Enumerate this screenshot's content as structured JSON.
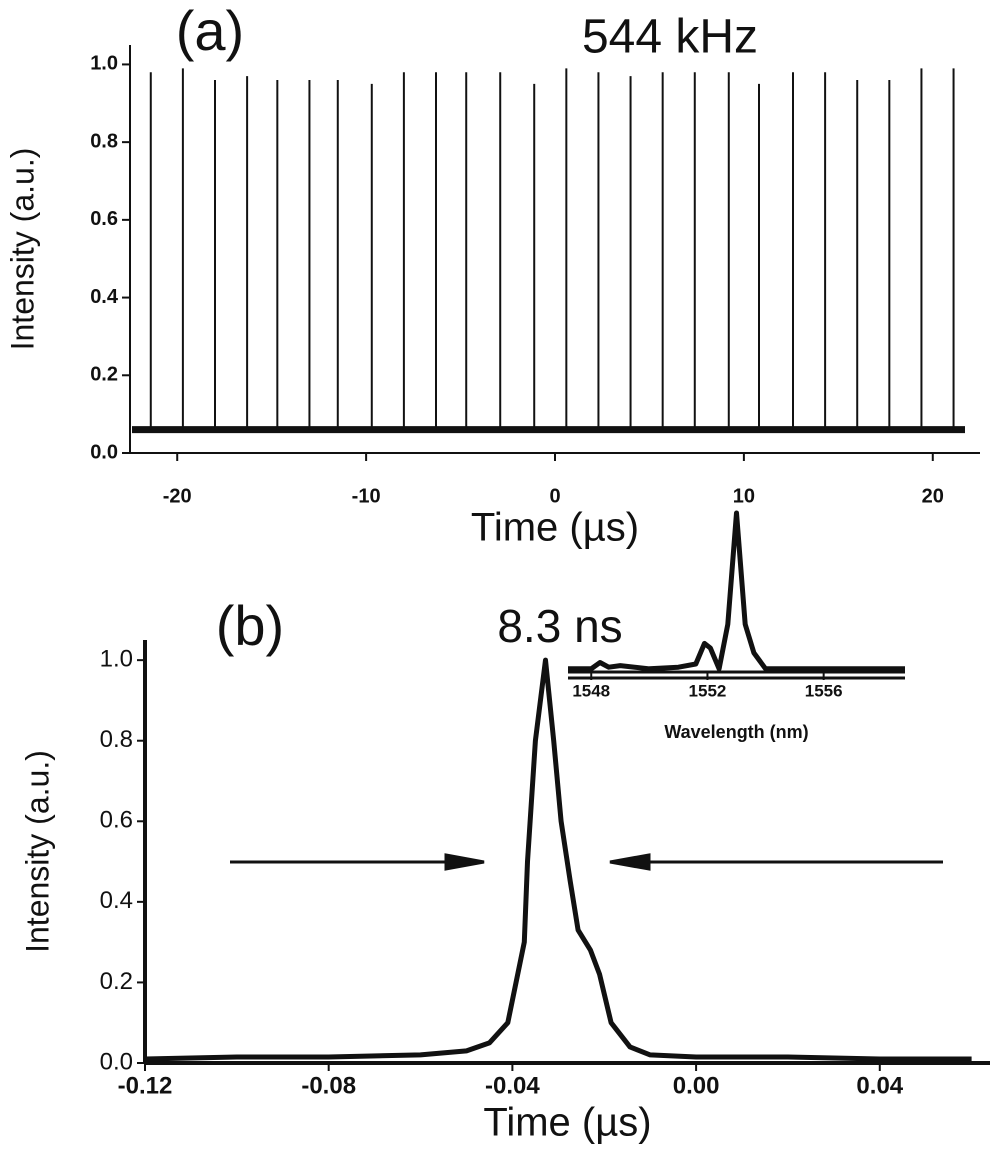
{
  "chart_data": [
    {
      "type": "stem",
      "panel_label": "(a)",
      "annotation": "544 kHz",
      "x_label": "Time (µs)",
      "y_label": "Intensity (a.u.)",
      "x": [
        -21.4,
        -19.7,
        -18.0,
        -16.3,
        -14.7,
        -13.0,
        -11.5,
        -9.7,
        -8.0,
        -6.3,
        -4.7,
        -2.9,
        -1.1,
        0.6,
        2.3,
        4.0,
        5.7,
        7.4,
        9.2,
        10.8,
        12.6,
        14.3,
        16.0,
        17.7,
        19.4,
        21.1
      ],
      "values": [
        0.98,
        0.99,
        0.96,
        0.97,
        0.96,
        0.96,
        0.96,
        0.95,
        0.98,
        0.98,
        0.98,
        0.98,
        0.95,
        0.99,
        0.98,
        0.97,
        0.98,
        0.98,
        0.98,
        0.95,
        0.98,
        0.98,
        0.96,
        0.96,
        0.99,
        0.99
      ],
      "baseline": 0.06,
      "color": "#111111",
      "xlim": [
        -22.5,
        22.5
      ],
      "xticks": [
        -20,
        -10,
        0,
        10,
        20
      ],
      "ylim": [
        0,
        1.05
      ],
      "yticks": [
        {
          "value": 0,
          "label": "0.0"
        },
        0.2,
        0.4,
        0.6,
        0.8,
        {
          "value": 1,
          "label": "1.0"
        }
      ]
    },
    {
      "type": "line",
      "panel_label": "(b)",
      "annotation": "8.3 ns",
      "x_label": "Time (µs)",
      "y_label": "Intensity (a.u.)",
      "x": [
        -0.12,
        -0.1,
        -0.08,
        -0.06,
        -0.05,
        -0.045,
        -0.041,
        -0.0374,
        -0.0367,
        -0.035,
        -0.0328,
        -0.031,
        -0.0294,
        -0.0274,
        -0.0257,
        -0.023,
        -0.021,
        -0.0185,
        -0.0144,
        -0.01,
        0,
        0.02,
        0.04,
        0.06
      ],
      "values": [
        0.01,
        0.015,
        0.015,
        0.02,
        0.03,
        0.05,
        0.1,
        0.3,
        0.5,
        0.8,
        1.0,
        0.8,
        0.6,
        0.45,
        0.33,
        0.28,
        0.22,
        0.1,
        0.04,
        0.02,
        0.015,
        0.015,
        0.01,
        0.01
      ],
      "color": "#111111",
      "xlim": [
        -0.12,
        0.064
      ],
      "xticks": [
        -0.12,
        -0.08,
        -0.04,
        {
          "value": 0,
          "label": "0.00"
        },
        0.04
      ],
      "ylim": [
        0,
        1.05
      ],
      "yticks": [
        {
          "value": 0,
          "label": "0.0"
        },
        0.2,
        0.4,
        0.6,
        0.8,
        {
          "value": 1,
          "label": "1.0"
        }
      ]
    },
    {
      "type": "line",
      "x_label": "Wavelength (nm)",
      "x": [
        1547.2,
        1548,
        1548.3,
        1548.6,
        1549,
        1550,
        1551,
        1551.6,
        1551.9,
        1552.1,
        1552.4,
        1552.7,
        1553,
        1553.3,
        1553.6,
        1554,
        1555,
        1558.8
      ],
      "values": [
        0.02,
        0.02,
        0.06,
        0.03,
        0.04,
        0.02,
        0.03,
        0.05,
        0.18,
        0.15,
        0.02,
        0.3,
        1.0,
        0.3,
        0.12,
        0.02,
        0.02,
        0.02
      ],
      "color": "#111111",
      "xlim": [
        1547.2,
        1558.8
      ],
      "xticks": [
        1548,
        1552,
        1556
      ],
      "ylim": [
        0,
        1.05
      ]
    }
  ]
}
